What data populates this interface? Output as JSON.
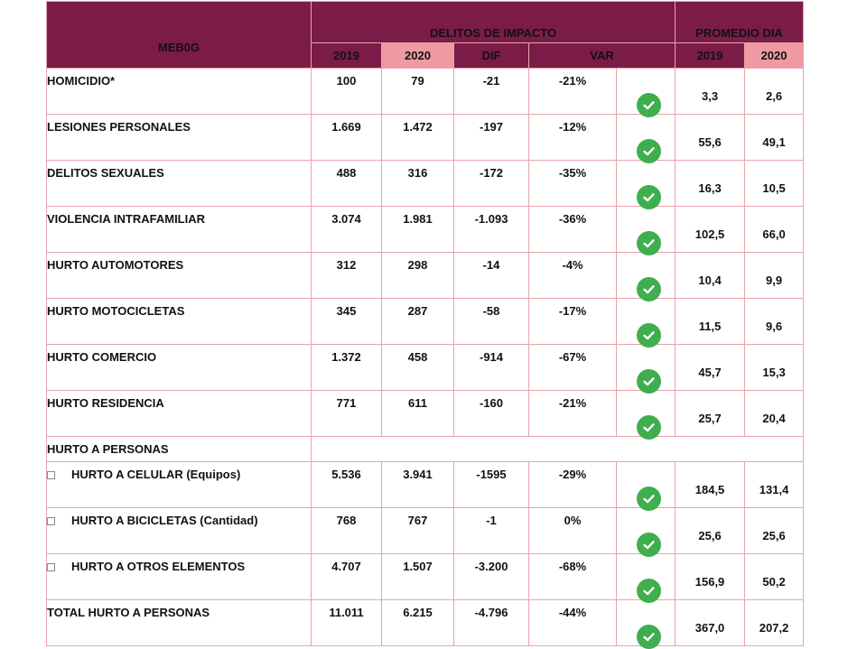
{
  "header": {
    "station": "MEB0G",
    "group_impacto": "DELITOS DE IMPACTO",
    "group_promedio": "PROMEDIO DIA",
    "cols": [
      "2019",
      "2020",
      "DIF",
      "VAR"
    ],
    "prom_cols": [
      "2019",
      "2020"
    ]
  },
  "rows": [
    {
      "label": "HOMICIDIO*",
      "y2019": "100",
      "y2020": "79",
      "dif": "-21",
      "var": "-21%",
      "p2019": "3,3",
      "p2020": "2,6"
    },
    {
      "label": "LESIONES PERSONALES",
      "y2019": "1.669",
      "y2020": "1.472",
      "dif": "-197",
      "var": "-12%",
      "p2019": "55,6",
      "p2020": "49,1"
    },
    {
      "label": "DELITOS SEXUALES",
      "y2019": "488",
      "y2020": "316",
      "dif": "-172",
      "var": "-35%",
      "p2019": "16,3",
      "p2020": "10,5"
    },
    {
      "label": "VIOLENCIA INTRAFAMILIAR",
      "y2019": "3.074",
      "y2020": "1.981",
      "dif": "-1.093",
      "var": "-36%",
      "p2019": "102,5",
      "p2020": "66,0"
    },
    {
      "label": "HURTO AUTOMOTORES",
      "y2019": "312",
      "y2020": "298",
      "dif": "-14",
      "var": "-4%",
      "p2019": "10,4",
      "p2020": "9,9"
    },
    {
      "label": "HURTO MOTOCICLETAS",
      "y2019": "345",
      "y2020": "287",
      "dif": "-58",
      "var": "-17%",
      "p2019": "11,5",
      "p2020": "9,6"
    },
    {
      "label": "HURTO COMERCIO",
      "y2019": "1.372",
      "y2020": "458",
      "dif": "-914",
      "var": "-67%",
      "p2019": "45,7",
      "p2020": "15,3"
    },
    {
      "label": "HURTO RESIDENCIA",
      "y2019": "771",
      "y2020": "611",
      "dif": "-160",
      "var": "-21%",
      "p2019": "25,7",
      "p2020": "20,4"
    }
  ],
  "section_label": "HURTO A PERSONAS",
  "subrows": [
    {
      "label": "HURTO A CELULAR (Equipos)",
      "y2019": "5.536",
      "y2020": "3.941",
      "dif": "-1595",
      "var": "-29%",
      "p2019": "184,5",
      "p2020": "131,4"
    },
    {
      "label": "HURTO A BICICLETAS (Cantidad)",
      "y2019": "768",
      "y2020": "767",
      "dif": "-1",
      "var": "0%",
      "p2019": "25,6",
      "p2020": "25,6"
    },
    {
      "label": "HURTO A OTROS ELEMENTOS",
      "y2019": "4.707",
      "y2020": "1.507",
      "dif": "-3.200",
      "var": "-68%",
      "p2019": "156,9",
      "p2020": "50,2"
    }
  ],
  "total": {
    "label": "TOTAL HURTO A PERSONAS",
    "y2019": "11.011",
    "y2020": "6.215",
    "dif": "-4.796",
    "var": "-44%",
    "p2019": "367,0",
    "p2020": "207,2"
  },
  "icons": {
    "status": "check-circle-icon",
    "bullet": "square-bullet-icon"
  },
  "colors": {
    "header": "#7b1c48",
    "header_2020": "#ef9aa2",
    "border": "#e8a3ab",
    "check": "#3fae4e"
  }
}
